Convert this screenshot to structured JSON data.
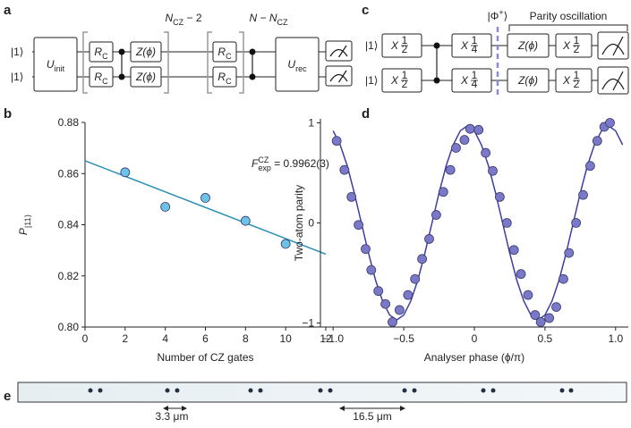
{
  "panel_labels": [
    "a",
    "b",
    "c",
    "d",
    "e"
  ],
  "circuit_a": {
    "inputs": [
      "|1⟩",
      "|1⟩"
    ],
    "gates": [
      {
        "main": "U",
        "sub": "init"
      },
      {
        "main": "R",
        "sub": "C"
      },
      {
        "main": "R",
        "sub": "C"
      },
      {
        "main": "Z(ϕ)"
      },
      {
        "main": "Z(ϕ)"
      },
      {
        "main": "R",
        "sub": "C"
      },
      {
        "main": "R",
        "sub": "C"
      },
      {
        "main": "U",
        "sub": "rec"
      }
    ],
    "repeat_label": {
      "main": "N",
      "sub": "CZ",
      "rest": " − 2"
    },
    "rest_label": {
      "main": "N − N",
      "sub": "CZ"
    }
  },
  "circuit_c": {
    "inputs": [
      "|1⟩",
      "|1⟩"
    ],
    "gates": [
      {
        "main": "X",
        "num": "1",
        "den": "2"
      },
      {
        "main": "X",
        "num": "1",
        "den": "2"
      },
      {
        "main": "X",
        "num": "1",
        "den": "4"
      },
      {
        "main": "X",
        "num": "1",
        "den": "4"
      },
      {
        "main": "Z(ϕ)"
      },
      {
        "main": "Z(ϕ)"
      },
      {
        "main": "X",
        "num": "1",
        "den": "2"
      },
      {
        "main": "X",
        "num": "1",
        "den": "2"
      }
    ],
    "state_label": {
      "main": "|Φ",
      "sup": "+",
      "rest": "⟩"
    },
    "bracket_label": "Parity oscillation"
  },
  "image_e": {
    "scale_labels": [
      "3.3 μm",
      "16.5 μm"
    ]
  },
  "chart_data": [
    {
      "type": "scatter",
      "x": [
        2,
        4,
        6,
        8,
        10
      ],
      "values": [
        0.8605,
        0.847,
        0.8505,
        0.8415,
        0.8325
      ],
      "fit": {
        "x": [
          0,
          12
        ],
        "values": [
          0.865,
          0.8285
        ]
      },
      "color": "#6cc3e8",
      "fit_color": "#2a8fb5",
      "xlim": [
        0,
        12
      ],
      "ylim": [
        0.8,
        0.88
      ],
      "xticks": [
        0,
        2,
        4,
        6,
        8,
        10,
        12
      ],
      "yticks": [
        {
          "value": 0.8,
          "label": "0.80"
        },
        {
          "value": 0.82,
          "label": "0.82"
        },
        {
          "value": 0.84,
          "label": "0.84"
        },
        {
          "value": 0.86,
          "label": "0.86"
        },
        {
          "value": 0.88,
          "label": "0.88"
        }
      ],
      "xlabel": "Number of CZ gates",
      "ylabel": {
        "main": "P",
        "sub": "|11⟩"
      },
      "annotation": {
        "main": "F",
        "sup": "CZ",
        "sub": "exp",
        "rest": " = 0.9962(3)"
      }
    },
    {
      "type": "scatter",
      "x": [
        -0.975,
        -0.92,
        -0.87,
        -0.82,
        -0.77,
        -0.73,
        -0.68,
        -0.63,
        -0.58,
        -0.53,
        -0.47,
        -0.42,
        -0.37,
        -0.32,
        -0.27,
        -0.22,
        -0.17,
        -0.13,
        -0.07,
        -0.03,
        0.03,
        0.08,
        0.13,
        0.18,
        0.23,
        0.28,
        0.33,
        0.38,
        0.43,
        0.47,
        0.53,
        0.58,
        0.63,
        0.67,
        0.72,
        0.77,
        0.82,
        0.87,
        0.92,
        0.96
      ],
      "values": [
        0.82,
        0.53,
        0.26,
        -0.02,
        -0.26,
        -0.47,
        -0.68,
        -0.81,
        -0.99,
        -0.87,
        -0.72,
        -0.56,
        -0.36,
        -0.16,
        0.08,
        0.31,
        0.53,
        0.75,
        0.83,
        0.94,
        0.93,
        0.7,
        0.52,
        0.26,
        0.0,
        -0.27,
        -0.51,
        -0.72,
        -0.92,
        -0.99,
        -0.95,
        -0.84,
        -0.56,
        -0.3,
        0.0,
        0.28,
        0.57,
        0.82,
        0.96,
        1.0
      ],
      "fit": {
        "x": [
          -1.0,
          -0.95,
          -0.9,
          -0.85,
          -0.8,
          -0.75,
          -0.7,
          -0.65,
          -0.6,
          -0.55,
          -0.5,
          -0.45,
          -0.4,
          -0.35,
          -0.3,
          -0.25,
          -0.2,
          -0.15,
          -0.1,
          -0.05,
          0.0,
          0.05,
          0.1,
          0.15,
          0.2,
          0.25,
          0.3,
          0.35,
          0.4,
          0.45,
          0.5,
          0.55,
          0.6,
          0.65,
          0.7,
          0.75,
          0.8,
          0.85,
          0.9,
          0.95,
          1.0,
          1.05
        ],
        "values": [
          0.92,
          0.78,
          0.57,
          0.3,
          0.0,
          -0.3,
          -0.57,
          -0.78,
          -0.92,
          -0.97,
          -0.92,
          -0.78,
          -0.57,
          -0.3,
          0.0,
          0.3,
          0.57,
          0.78,
          0.92,
          0.97,
          0.92,
          0.78,
          0.57,
          0.3,
          0.0,
          -0.3,
          -0.57,
          -0.78,
          -0.92,
          -0.97,
          -0.92,
          -0.78,
          -0.57,
          -0.3,
          0.0,
          0.3,
          0.57,
          0.78,
          0.92,
          0.97,
          0.92,
          0.78
        ]
      },
      "color": "#7a79c9",
      "fit_color": "#3f3ea0",
      "xlim": [
        -1.09,
        1.09
      ],
      "ylim": [
        -1.04,
        1.04
      ],
      "xticks": [
        {
          "value": -1,
          "label": "−1.0"
        },
        {
          "value": -0.5,
          "label": "−0.5"
        },
        0,
        0.5,
        {
          "value": 1,
          "label": "1.0"
        }
      ],
      "yticks": [
        {
          "value": -1,
          "label": "−1"
        },
        0,
        1
      ],
      "xlabel": "Analyser phase (ϕ/π)",
      "ylabel": "Two-atom parity"
    }
  ]
}
